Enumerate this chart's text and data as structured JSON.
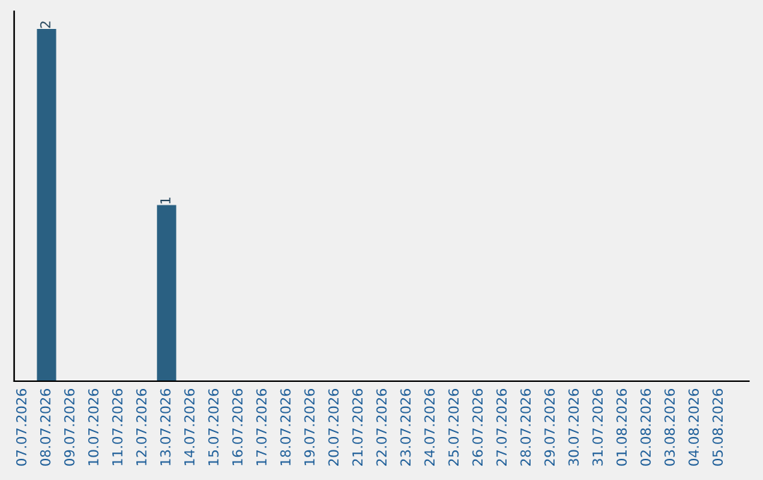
{
  "chart_data": {
    "type": "bar",
    "categories": [
      "07.07.2026",
      "08.07.2026",
      "09.07.2026",
      "10.07.2026",
      "11.07.2026",
      "12.07.2026",
      "13.07.2026",
      "14.07.2026",
      "15.07.2026",
      "16.07.2026",
      "17.07.2026",
      "18.07.2026",
      "19.07.2026",
      "20.07.2026",
      "21.07.2026",
      "22.07.2026",
      "23.07.2026",
      "24.07.2026",
      "25.07.2026",
      "26.07.2026",
      "27.07.2026",
      "28.07.2026",
      "29.07.2026",
      "30.07.2026",
      "31.07.2026",
      "01.08.2026",
      "02.08.2026",
      "03.08.2026",
      "04.08.2026",
      "05.08.2026"
    ],
    "values": [
      0,
      2,
      0,
      0,
      0,
      0,
      1,
      0,
      0,
      0,
      0,
      0,
      0,
      0,
      0,
      0,
      0,
      0,
      0,
      0,
      0,
      0,
      0,
      0,
      0,
      0,
      0,
      0,
      0,
      0
    ],
    "value_labels": [
      null,
      "2",
      null,
      null,
      null,
      null,
      "1",
      null,
      null,
      null,
      null,
      null,
      null,
      null,
      null,
      null,
      null,
      null,
      null,
      null,
      null,
      null,
      null,
      null,
      null,
      null,
      null,
      null,
      null,
      null
    ],
    "color": "#2a6082",
    "tick_labels": "x",
    "grid": false,
    "legend": false
  }
}
